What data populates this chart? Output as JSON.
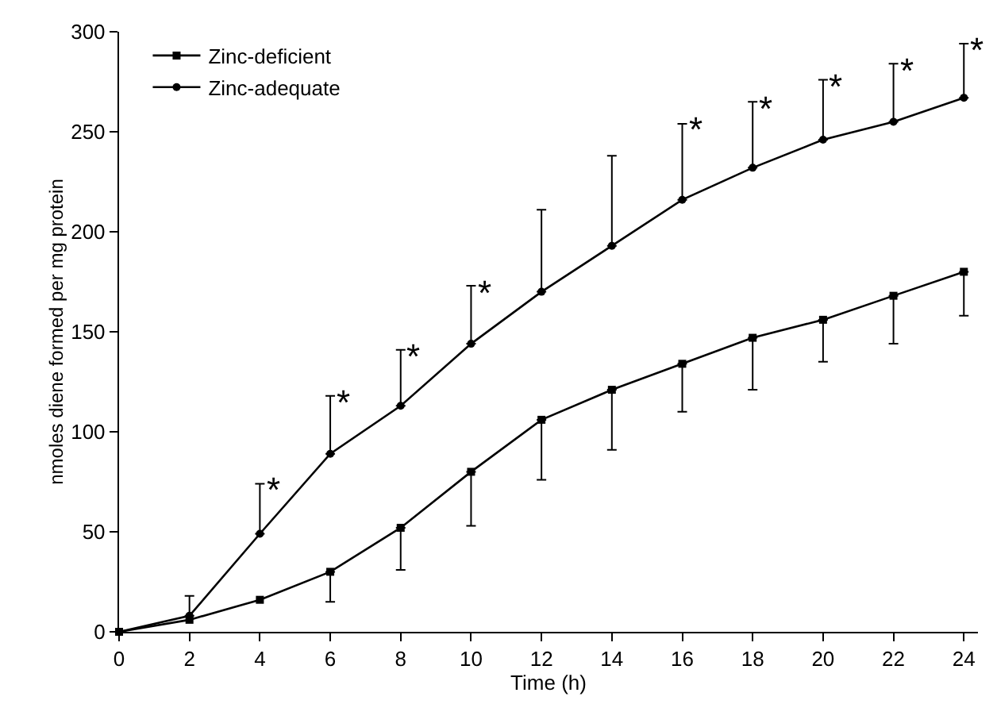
{
  "chart_data": {
    "type": "line",
    "xlabel": "Time (h)",
    "ylabel": "nmoles diene formed per mg protein",
    "x": [
      0,
      2,
      4,
      6,
      8,
      10,
      12,
      14,
      16,
      18,
      20,
      22,
      24
    ],
    "series": [
      {
        "name": "Zinc-deficient",
        "color": "#000000",
        "marker": "square",
        "values": [
          0,
          6,
          16,
          30,
          52,
          80,
          106,
          121,
          134,
          147,
          156,
          168,
          180
        ],
        "errors": [
          null,
          null,
          null,
          [
            15,
            30
          ],
          [
            31,
            52
          ],
          [
            53,
            80
          ],
          [
            76,
            106
          ],
          [
            91,
            121
          ],
          [
            110,
            134
          ],
          [
            121,
            147
          ],
          [
            135,
            156
          ],
          [
            144,
            168
          ],
          [
            158,
            180
          ]
        ]
      },
      {
        "name": "Zinc-adequate",
        "color": "#000000",
        "marker": "circle",
        "values": [
          0,
          8,
          49,
          89,
          113,
          144,
          170,
          193,
          216,
          232,
          246,
          255,
          267
        ],
        "errors": [
          null,
          [
            8,
            18
          ],
          [
            49,
            74
          ],
          [
            89,
            118
          ],
          [
            113,
            141
          ],
          [
            144,
            173
          ],
          [
            170,
            211
          ],
          [
            193,
            238
          ],
          [
            216,
            254
          ],
          [
            232,
            265
          ],
          [
            246,
            276
          ],
          [
            255,
            284
          ],
          [
            267,
            294
          ]
        ]
      }
    ],
    "annotations": [
      {
        "text": "*",
        "x": 4,
        "y": 74
      },
      {
        "text": "*",
        "x": 6,
        "y": 118
      },
      {
        "text": "*",
        "x": 8,
        "y": 141
      },
      {
        "text": "*",
        "x": 10,
        "y": 173
      },
      {
        "text": "*",
        "x": 16,
        "y": 254
      },
      {
        "text": "*",
        "x": 18,
        "y": 265
      },
      {
        "text": "*",
        "x": 20,
        "y": 276
      },
      {
        "text": "*",
        "x": 22,
        "y": 284
      },
      {
        "text": "*",
        "x": 24,
        "y": 294
      }
    ],
    "xlim": [
      0,
      24.4
    ],
    "xticks": [
      0,
      2,
      4,
      6,
      8,
      10,
      12,
      14,
      16,
      18,
      20,
      22,
      24
    ],
    "ylim": [
      0,
      300
    ],
    "yticks": [
      0,
      50,
      100,
      150,
      200,
      250,
      300
    ],
    "grid": false,
    "legend": "top left",
    "line_style": "solid"
  }
}
